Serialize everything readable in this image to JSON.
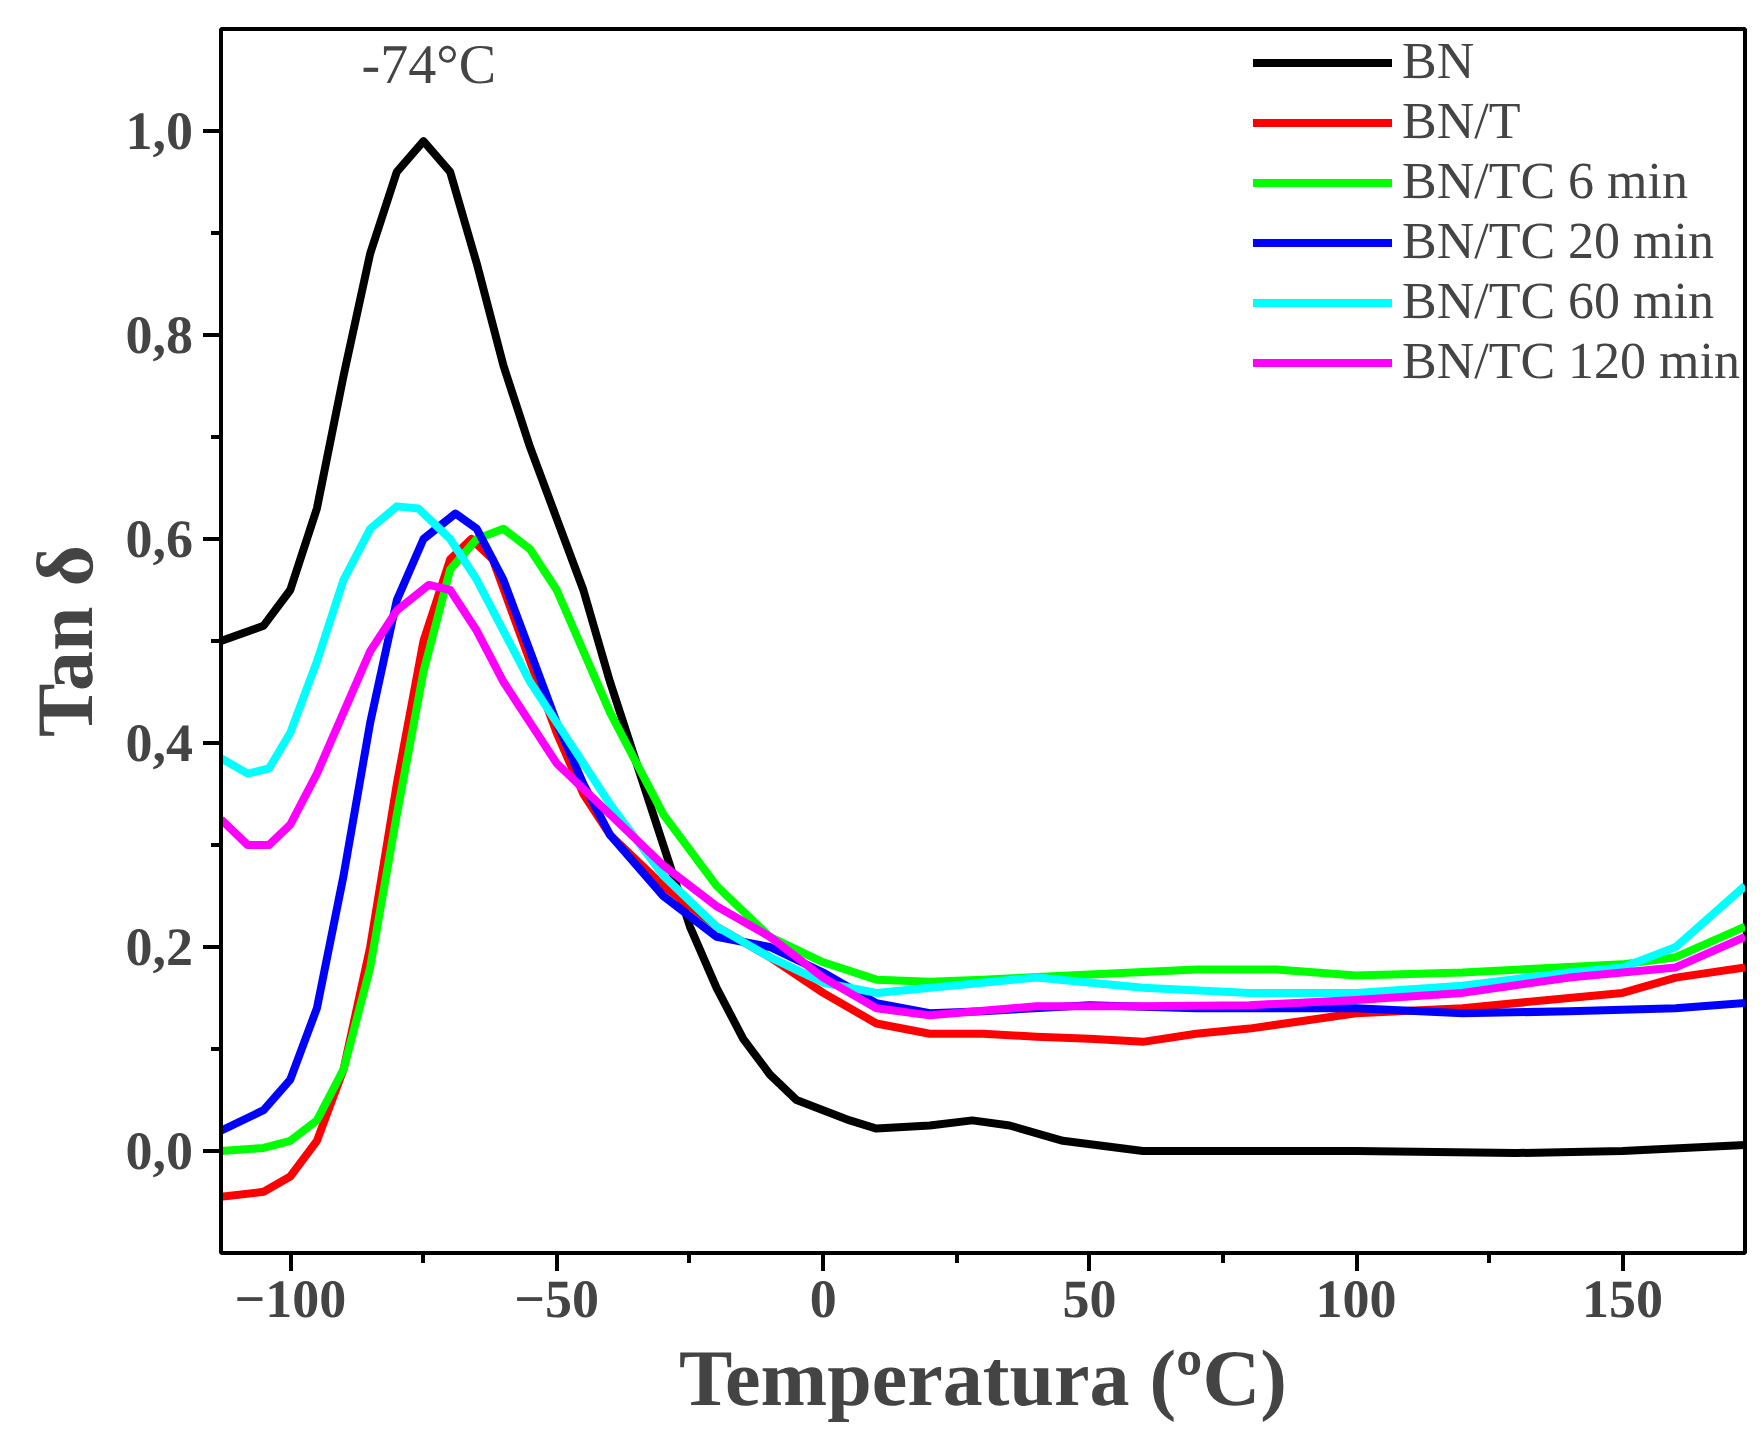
{
  "chart_data": {
    "type": "line",
    "xlabel": "Temperatura (ºC)",
    "ylabel": "Tan δ",
    "xlim": [
      -113,
      173
    ],
    "ylim": [
      -0.1,
      1.1
    ],
    "xticks": [
      -100,
      {
        "value": -75,
        "label": null
      },
      -50,
      {
        "value": -25,
        "label": null
      },
      0,
      {
        "value": 25,
        "label": null
      },
      50,
      {
        "value": 75,
        "label": null
      },
      100,
      {
        "value": 125,
        "label": null
      },
      150
    ],
    "yticks": [
      {
        "value": 0,
        "label": "0,0"
      },
      {
        "value": 0.1,
        "label": null
      },
      {
        "value": 0.2,
        "label": "0,2"
      },
      {
        "value": 0.3,
        "label": null
      },
      {
        "value": 0.4,
        "label": "0,4"
      },
      {
        "value": 0.5,
        "label": null
      },
      {
        "value": 0.6,
        "label": "0,6"
      },
      {
        "value": 0.7,
        "label": null
      },
      {
        "value": 0.8,
        "label": "0,8"
      },
      {
        "value": 0.9,
        "label": null
      },
      {
        "value": 1.0,
        "label": "1,0"
      }
    ],
    "grid": false,
    "legend": "top right",
    "marker": "none",
    "line_style": "solid",
    "annotations": [
      {
        "text": "-74°C",
        "x": -74,
        "y": 0.99
      }
    ],
    "series": [
      {
        "name": "BN",
        "color": "#000000",
        "x": [
          -113,
          -105,
          -100,
          -95,
          -90,
          -85,
          -80,
          -75,
          -70,
          -65,
          -60,
          -55,
          -50,
          -45,
          -40,
          -35,
          -30,
          -25,
          -20,
          -15,
          -10,
          -5,
          0,
          5,
          10,
          20,
          28,
          35,
          45,
          60,
          100,
          130,
          150,
          173
        ],
        "values": [
          0.5,
          0.515,
          0.55,
          0.63,
          0.76,
          0.88,
          0.96,
          0.99,
          0.96,
          0.87,
          0.77,
          0.69,
          0.62,
          0.55,
          0.46,
          0.38,
          0.3,
          0.22,
          0.16,
          0.11,
          0.075,
          0.05,
          0.04,
          0.03,
          0.022,
          0.025,
          0.03,
          0.025,
          0.01,
          0.0,
          0.0,
          -0.002,
          0.0,
          0.006
        ]
      },
      {
        "name": "BN/T",
        "color": "#ff0000",
        "x": [
          -113,
          -105,
          -100,
          -95,
          -90,
          -85,
          -80,
          -75,
          -70,
          -66,
          -62,
          -55,
          -50,
          -45,
          -40,
          -30,
          -20,
          -10,
          0,
          10,
          20,
          30,
          40,
          50,
          60,
          70,
          80,
          100,
          120,
          140,
          150,
          160,
          173
        ],
        "values": [
          -0.045,
          -0.04,
          -0.025,
          0.01,
          0.08,
          0.2,
          0.36,
          0.5,
          0.58,
          0.6,
          0.58,
          0.48,
          0.41,
          0.35,
          0.31,
          0.26,
          0.22,
          0.19,
          0.155,
          0.125,
          0.115,
          0.115,
          0.112,
          0.11,
          0.107,
          0.115,
          0.12,
          0.135,
          0.14,
          0.15,
          0.155,
          0.17,
          0.18
        ]
      },
      {
        "name": "BN/TC 6 min",
        "color": "#00ff00",
        "x": [
          -113,
          -105,
          -100,
          -95,
          -90,
          -85,
          -80,
          -75,
          -70,
          -65,
          -60,
          -55,
          -50,
          -45,
          -40,
          -35,
          -30,
          -20,
          -10,
          0,
          10,
          20,
          30,
          50,
          70,
          85,
          100,
          120,
          150,
          160,
          173
        ],
        "values": [
          0.0,
          0.003,
          0.01,
          0.03,
          0.08,
          0.18,
          0.33,
          0.47,
          0.57,
          0.6,
          0.61,
          0.59,
          0.55,
          0.49,
          0.43,
          0.38,
          0.33,
          0.26,
          0.21,
          0.185,
          0.168,
          0.166,
          0.168,
          0.173,
          0.178,
          0.178,
          0.172,
          0.175,
          0.183,
          0.19,
          0.22
        ]
      },
      {
        "name": "BN/TC 20 min",
        "color": "#0000ff",
        "x": [
          -113,
          -105,
          -100,
          -95,
          -90,
          -85,
          -80,
          -75,
          -69,
          -65,
          -60,
          -55,
          -50,
          -45,
          -40,
          -30,
          -20,
          -10,
          0,
          10,
          20,
          30,
          50,
          70,
          100,
          120,
          140,
          160,
          173
        ],
        "values": [
          0.02,
          0.04,
          0.07,
          0.14,
          0.27,
          0.42,
          0.54,
          0.6,
          0.625,
          0.61,
          0.56,
          0.49,
          0.42,
          0.36,
          0.31,
          0.25,
          0.21,
          0.2,
          0.175,
          0.145,
          0.135,
          0.137,
          0.143,
          0.14,
          0.14,
          0.135,
          0.137,
          0.14,
          0.145
        ]
      },
      {
        "name": "BN/TC 60 min",
        "color": "#00ffff",
        "x": [
          -113,
          -108,
          -104,
          -100,
          -95,
          -90,
          -85,
          -80,
          -76,
          -70,
          -65,
          -60,
          -55,
          -50,
          -40,
          -30,
          -20,
          -10,
          0,
          10,
          20,
          30,
          40,
          60,
          80,
          100,
          120,
          140,
          150,
          160,
          173
        ],
        "values": [
          0.385,
          0.37,
          0.375,
          0.41,
          0.48,
          0.56,
          0.61,
          0.632,
          0.63,
          0.6,
          0.56,
          0.51,
          0.46,
          0.42,
          0.34,
          0.27,
          0.22,
          0.19,
          0.165,
          0.155,
          0.16,
          0.165,
          0.17,
          0.16,
          0.155,
          0.155,
          0.162,
          0.175,
          0.18,
          0.2,
          0.26
        ]
      },
      {
        "name": "BN/TC 120 min",
        "color": "#ff00ff",
        "x": [
          -113,
          -108,
          -104,
          -100,
          -95,
          -90,
          -85,
          -80,
          -74,
          -70,
          -65,
          -60,
          -55,
          -50,
          -40,
          -30,
          -20,
          -10,
          0,
          10,
          20,
          40,
          60,
          80,
          100,
          120,
          140,
          160,
          173
        ],
        "values": [
          0.325,
          0.3,
          0.3,
          0.32,
          0.37,
          0.43,
          0.49,
          0.53,
          0.555,
          0.55,
          0.51,
          0.46,
          0.42,
          0.38,
          0.33,
          0.28,
          0.24,
          0.21,
          0.17,
          0.14,
          0.133,
          0.142,
          0.142,
          0.143,
          0.148,
          0.155,
          0.17,
          0.18,
          0.21
        ]
      }
    ]
  }
}
